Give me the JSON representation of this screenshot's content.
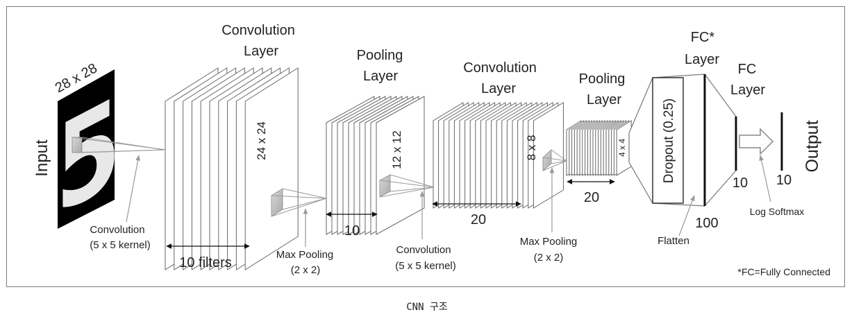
{
  "caption": "CNN 구조",
  "input": {
    "label": "Input",
    "size": "28 x 28",
    "digit": "5"
  },
  "conv1": {
    "title_line1": "Convolution",
    "title_line2": "Layer",
    "size": "24 x 24",
    "count": "10 filters",
    "note_line1": "Convolution",
    "note_line2": "(5 x 5 kernel)"
  },
  "pool1": {
    "title_line1": "Pooling",
    "title_line2": "Layer",
    "size": "12 x 12",
    "count": "10",
    "note_line1": "Max Pooling",
    "note_line2": "(2 x 2)"
  },
  "conv2": {
    "title_line1": "Convolution",
    "title_line2": "Layer",
    "size": "8 x 8",
    "count": "20",
    "note_line1": "Convolution",
    "note_line2": "(5 x 5 kernel)"
  },
  "pool2": {
    "title_line1": "Pooling",
    "title_line2": "Layer",
    "size": "4 x 4",
    "count": "20",
    "note_line1": "Max Pooling",
    "note_line2": "(2 x 2)"
  },
  "fc1": {
    "title_line1": "FC*",
    "title_line2": "Layer",
    "dropout": "Dropout (0.25)",
    "count": "100",
    "note": "Flatten"
  },
  "fc2": {
    "title_line1": "FC",
    "title_line2": "Layer",
    "count": "10",
    "note": "Log Softmax"
  },
  "output": {
    "label": "Output",
    "count": "10"
  },
  "footnote": "*FC=Fully Connected"
}
